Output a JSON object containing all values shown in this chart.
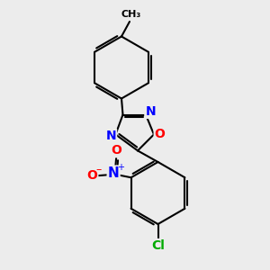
{
  "background_color": "#ececec",
  "bond_color": "#000000",
  "bond_width": 1.5,
  "atom_colors": {
    "N": "#0000ff",
    "O": "#ff0000",
    "Cl": "#00aa00"
  },
  "font_size": 10
}
